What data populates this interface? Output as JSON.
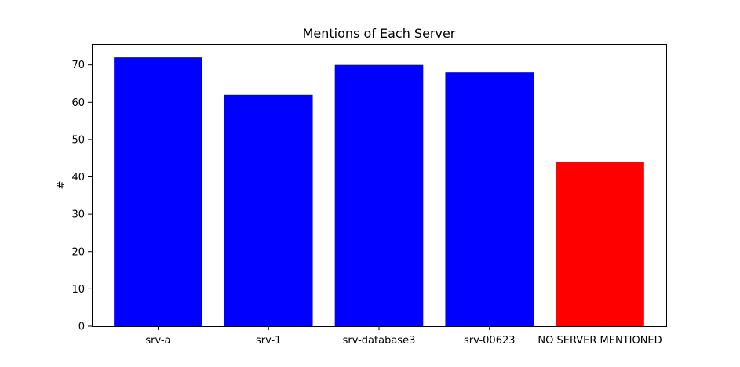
{
  "chart_data": {
    "type": "bar",
    "title": "Mentions of Each Server",
    "xlabel": "",
    "ylabel": "#",
    "categories": [
      "srv-a",
      "srv-1",
      "srv-database3",
      "srv-00623",
      "NO SERVER MENTIONED"
    ],
    "values": [
      72,
      62,
      70,
      68,
      44
    ],
    "bar_colors": [
      "#0000ff",
      "#0000ff",
      "#0000ff",
      "#0000ff",
      "#ff0000"
    ],
    "ylim": [
      0,
      75.6
    ],
    "yticks": [
      0,
      10,
      20,
      30,
      40,
      50,
      60,
      70
    ],
    "grid": false,
    "legend": "none"
  }
}
